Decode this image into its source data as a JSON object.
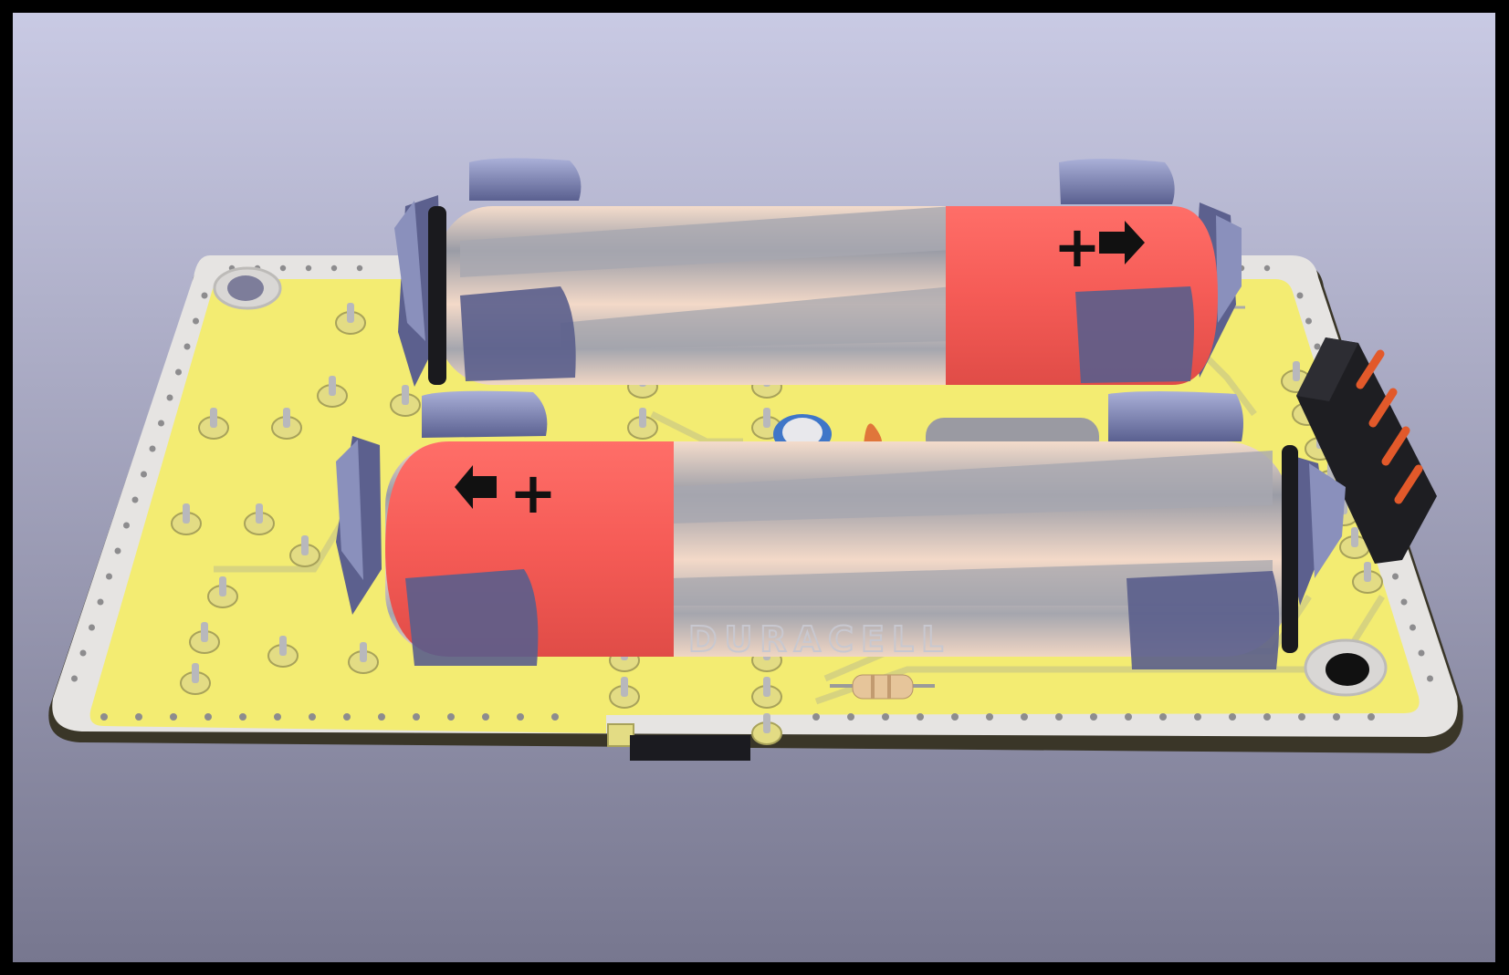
{
  "viewer": {
    "background_top": "#c9cae4",
    "background_bottom": "#77778f",
    "frame_color": "#000000"
  },
  "board": {
    "soldermask_color": "#f3ec72",
    "silkscreen_color": "#e6e4e2",
    "edge_color": "#3a3628",
    "copper_color": "#d7d37f"
  },
  "batteries": {
    "top": {
      "polarity_label": "+",
      "arrow_icon": "arrow-right-icon",
      "cap_color": "#f95f5a",
      "body_color": "#9aa0a8"
    },
    "bottom": {
      "polarity_label": "+",
      "arrow_icon": "arrow-left-icon",
      "cap_color": "#f95f5a",
      "body_color": "#9aa0a8",
      "brand_text": "DURACELL"
    }
  },
  "connector": {
    "pin_count": 4,
    "pin_color": "#e2592a",
    "housing_color": "#1e1e22"
  }
}
